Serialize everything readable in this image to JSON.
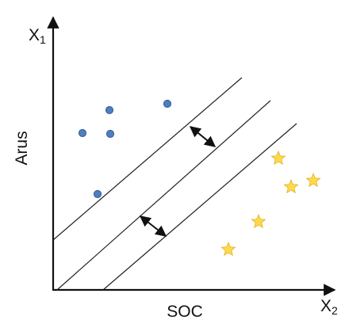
{
  "diagram": {
    "y_axis_symbol": "X",
    "y_axis_subscript": "1",
    "x_axis_symbol": "X",
    "x_axis_subscript": "2",
    "y_axis_label": "Arus",
    "x_axis_label": "SOC",
    "class_a": {
      "marker": "circle",
      "color": "#4f7fbf",
      "edge_color": "#3a659e"
    },
    "class_b": {
      "marker": "star",
      "color": "#ffd94a",
      "edge_color": "#e0b22a"
    },
    "boundary_lines": {
      "count": 3,
      "color": "#222222"
    },
    "margin_arrows": {
      "count": 2,
      "color": "#111111"
    }
  }
}
